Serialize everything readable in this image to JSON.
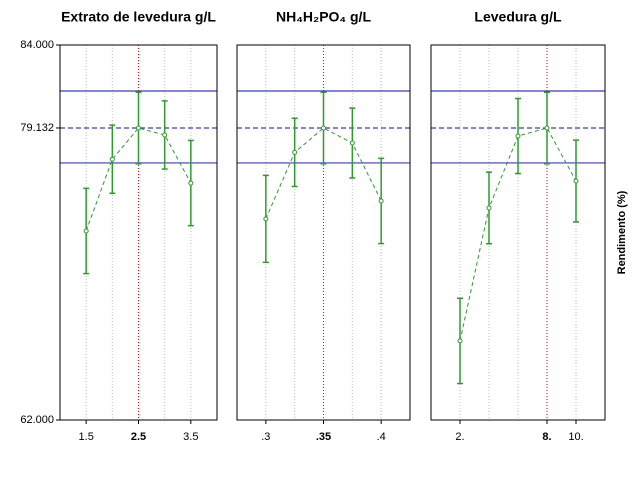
{
  "chart_data": [
    {
      "type": "profile",
      "title": "Extrato de levedura g/L",
      "x": [
        1.5,
        2,
        2.5,
        3,
        3.5
      ],
      "values": [
        73.09,
        77.3,
        79.13,
        78.72,
        75.9
      ],
      "errors": [
        2.5,
        2.0,
        2.1,
        2.0,
        2.5
      ],
      "xlim": [
        1,
        4
      ],
      "xticks": [
        1.5,
        2.5,
        3.5
      ],
      "optimum": 2.5,
      "ylim": [
        62,
        84
      ],
      "yticks": [
        {
          "value": 62,
          "label": "62.000"
        },
        {
          "value": 79.132,
          "label": "79.132"
        },
        {
          "value": 84,
          "label": "84.000"
        }
      ],
      "bounds": [
        77.08,
        81.3
      ],
      "color": "#2e9a2e"
    },
    {
      "type": "profile",
      "title": "NH₄H₂PO₄ g/L",
      "x": [
        0.3,
        0.325,
        0.35,
        0.375,
        0.4
      ],
      "values": [
        73.8,
        77.7,
        79.13,
        78.25,
        74.85
      ],
      "errors": [
        2.55,
        2.0,
        2.1,
        2.05,
        2.5
      ],
      "xlim": [
        0.275,
        0.425
      ],
      "xticks": [
        {
          "value": 0.3,
          "label": ".3"
        },
        {
          "value": 0.35,
          "label": ".35"
        },
        {
          "value": 0.4,
          "label": ".4"
        }
      ],
      "optimum": 0.35,
      "ylim": [
        62,
        84
      ],
      "reference": 79.132,
      "bounds": [
        77.08,
        81.3
      ],
      "color": "#2e9a2e"
    },
    {
      "type": "profile",
      "title": "Levedura  g/L",
      "y_label": "Rendimento (%)",
      "x": [
        2,
        4,
        6,
        8,
        10
      ],
      "values": [
        66.64,
        74.44,
        78.66,
        79.13,
        76.02
      ],
      "errors": [
        2.5,
        2.1,
        2.2,
        2.1,
        2.4
      ],
      "xlim": [
        0,
        12
      ],
      "xticks": [
        {
          "value": 2,
          "label": "2."
        },
        {
          "value": 8,
          "label": "8."
        },
        {
          "value": 10,
          "label": "10."
        }
      ],
      "optimum": 8,
      "ylim": [
        62,
        84
      ],
      "reference": 79.132,
      "bounds": [
        77.08,
        81.3
      ],
      "color": "#2e9a2e"
    }
  ]
}
